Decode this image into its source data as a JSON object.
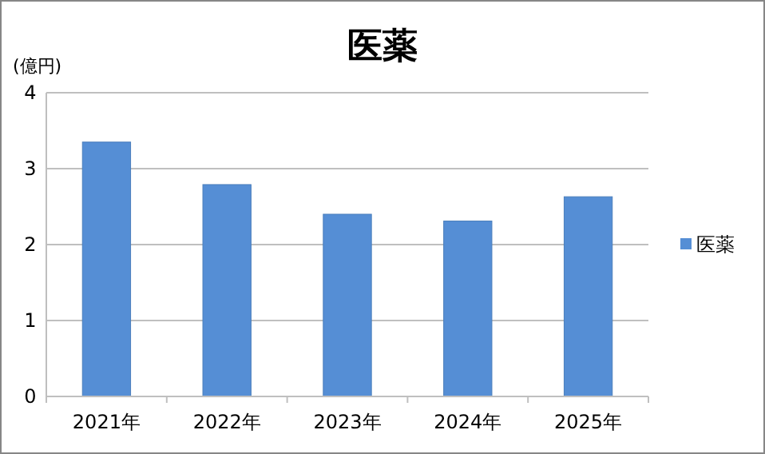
{
  "chart_data": {
    "type": "bar",
    "title": "医薬",
    "ylabel": "(億円)",
    "categories": [
      "2021年",
      "2022年",
      "2023年",
      "2024年",
      "2025年"
    ],
    "series": [
      {
        "name": "医薬",
        "color": "#558ed5",
        "values": [
          3.35,
          2.79,
          2.4,
          2.31,
          2.63
        ]
      }
    ],
    "ylim": [
      0,
      4
    ],
    "yticks": [
      0,
      1,
      2,
      3,
      4
    ],
    "grid": "y",
    "legend": "right"
  }
}
